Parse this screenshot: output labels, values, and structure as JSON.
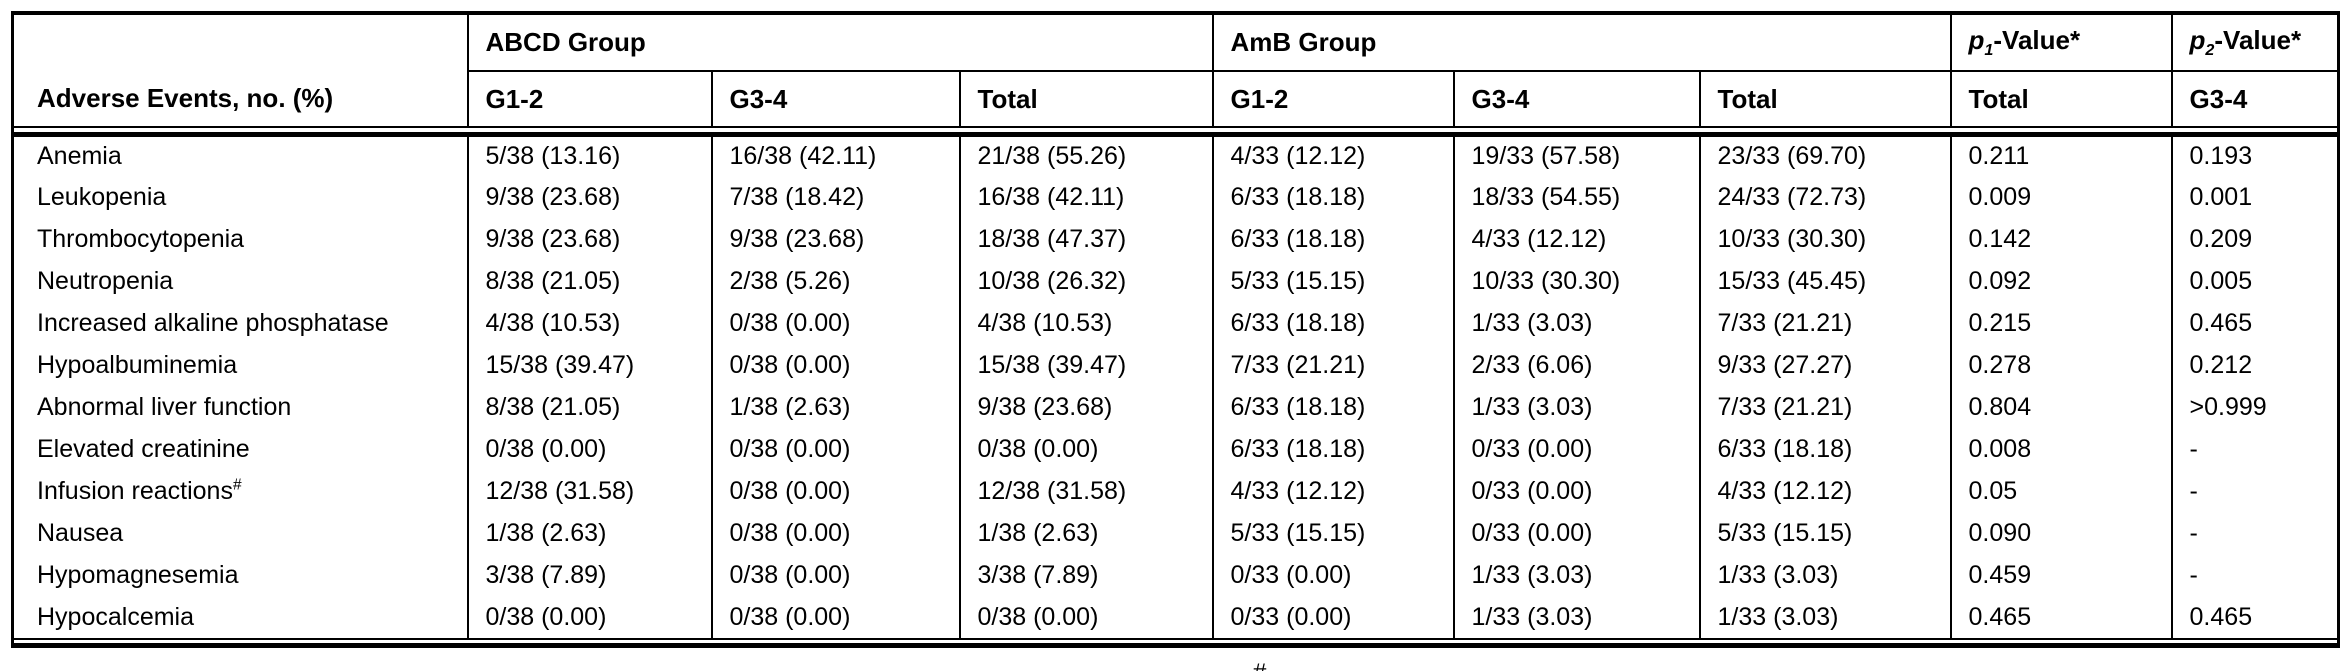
{
  "table": {
    "row_header_label": "Adverse Events, no. (%)",
    "groups": [
      {
        "label": "ABCD Group",
        "subcols": [
          "G1-2",
          "G3-4",
          "Total"
        ]
      },
      {
        "label": "AmB Group",
        "subcols": [
          "G1-2",
          "G3-4",
          "Total"
        ]
      }
    ],
    "pcols": [
      {
        "symbol": "p",
        "subscript": "1",
        "suffix": "-Value*",
        "subheader": "Total"
      },
      {
        "symbol": "p",
        "subscript": "2",
        "suffix": "-Value*",
        "subheader": "G3-4"
      }
    ],
    "rows": [
      {
        "event": "Anemia",
        "sup": "",
        "values": [
          "5/38 (13.16)",
          "16/38 (42.11)",
          "21/38 (55.26)",
          "4/33 (12.12)",
          "19/33 (57.58)",
          "23/33 (69.70)",
          "0.211",
          "0.193"
        ]
      },
      {
        "event": "Leukopenia",
        "sup": "",
        "values": [
          "9/38 (23.68)",
          "7/38 (18.42)",
          "16/38 (42.11)",
          "6/33 (18.18)",
          "18/33 (54.55)",
          "24/33 (72.73)",
          "0.009",
          "0.001"
        ]
      },
      {
        "event": "Thrombocytopenia",
        "sup": "",
        "values": [
          "9/38 (23.68)",
          "9/38 (23.68)",
          "18/38 (47.37)",
          "6/33 (18.18)",
          "4/33 (12.12)",
          "10/33 (30.30)",
          "0.142",
          "0.209"
        ]
      },
      {
        "event": "Neutropenia",
        "sup": "",
        "values": [
          "8/38 (21.05)",
          "2/38 (5.26)",
          "10/38 (26.32)",
          "5/33 (15.15)",
          "10/33 (30.30)",
          "15/33 (45.45)",
          "0.092",
          "0.005"
        ]
      },
      {
        "event": "Increased alkaline phosphatase",
        "sup": "",
        "values": [
          "4/38 (10.53)",
          "0/38 (0.00)",
          "4/38 (10.53)",
          "6/33 (18.18)",
          "1/33 (3.03)",
          "7/33 (21.21)",
          "0.215",
          "0.465"
        ]
      },
      {
        "event": "Hypoalbuminemia",
        "sup": "",
        "values": [
          "15/38 (39.47)",
          "0/38 (0.00)",
          "15/38 (39.47)",
          "7/33 (21.21)",
          "2/33 (6.06)",
          "9/33 (27.27)",
          "0.278",
          "0.212"
        ]
      },
      {
        "event": "Abnormal liver function",
        "sup": "",
        "values": [
          "8/38 (21.05)",
          "1/38 (2.63)",
          "9/38 (23.68)",
          "6/33 (18.18)",
          "1/33 (3.03)",
          "7/33 (21.21)",
          "0.804",
          ">0.999"
        ]
      },
      {
        "event": "Elevated creatinine",
        "sup": "",
        "values": [
          "0/38 (0.00)",
          "0/38 (0.00)",
          "0/38 (0.00)",
          "6/33 (18.18)",
          "0/33 (0.00)",
          "6/33 (18.18)",
          "0.008",
          "-"
        ]
      },
      {
        "event": "Infusion reactions",
        "sup": "#",
        "values": [
          "12/38 (31.58)",
          "0/38 (0.00)",
          "12/38 (31.58)",
          "4/33 (12.12)",
          "0/33 (0.00)",
          "4/33 (12.12)",
          "0.05",
          "-"
        ]
      },
      {
        "event": "Nausea",
        "sup": "",
        "values": [
          "1/38 (2.63)",
          "0/38 (0.00)",
          "1/38 (2.63)",
          "5/33 (15.15)",
          "0/33 (0.00)",
          "5/33 (15.15)",
          "0.090",
          "-"
        ]
      },
      {
        "event": "Hypomagnesemia",
        "sup": "",
        "values": [
          "3/38 (7.89)",
          "0/38 (0.00)",
          "3/38 (7.89)",
          "0/33 (0.00)",
          "1/33 (3.03)",
          "1/33 (3.03)",
          "0.459",
          "-"
        ]
      },
      {
        "event": "Hypocalcemia",
        "sup": "",
        "values": [
          "0/38 (0.00)",
          "0/38 (0.00)",
          "0/38 (0.00)",
          "0/33 (0.00)",
          "1/33 (3.03)",
          "1/33 (3.03)",
          "0.465",
          "0.465"
        ]
      }
    ],
    "footnote_marker": "#"
  }
}
